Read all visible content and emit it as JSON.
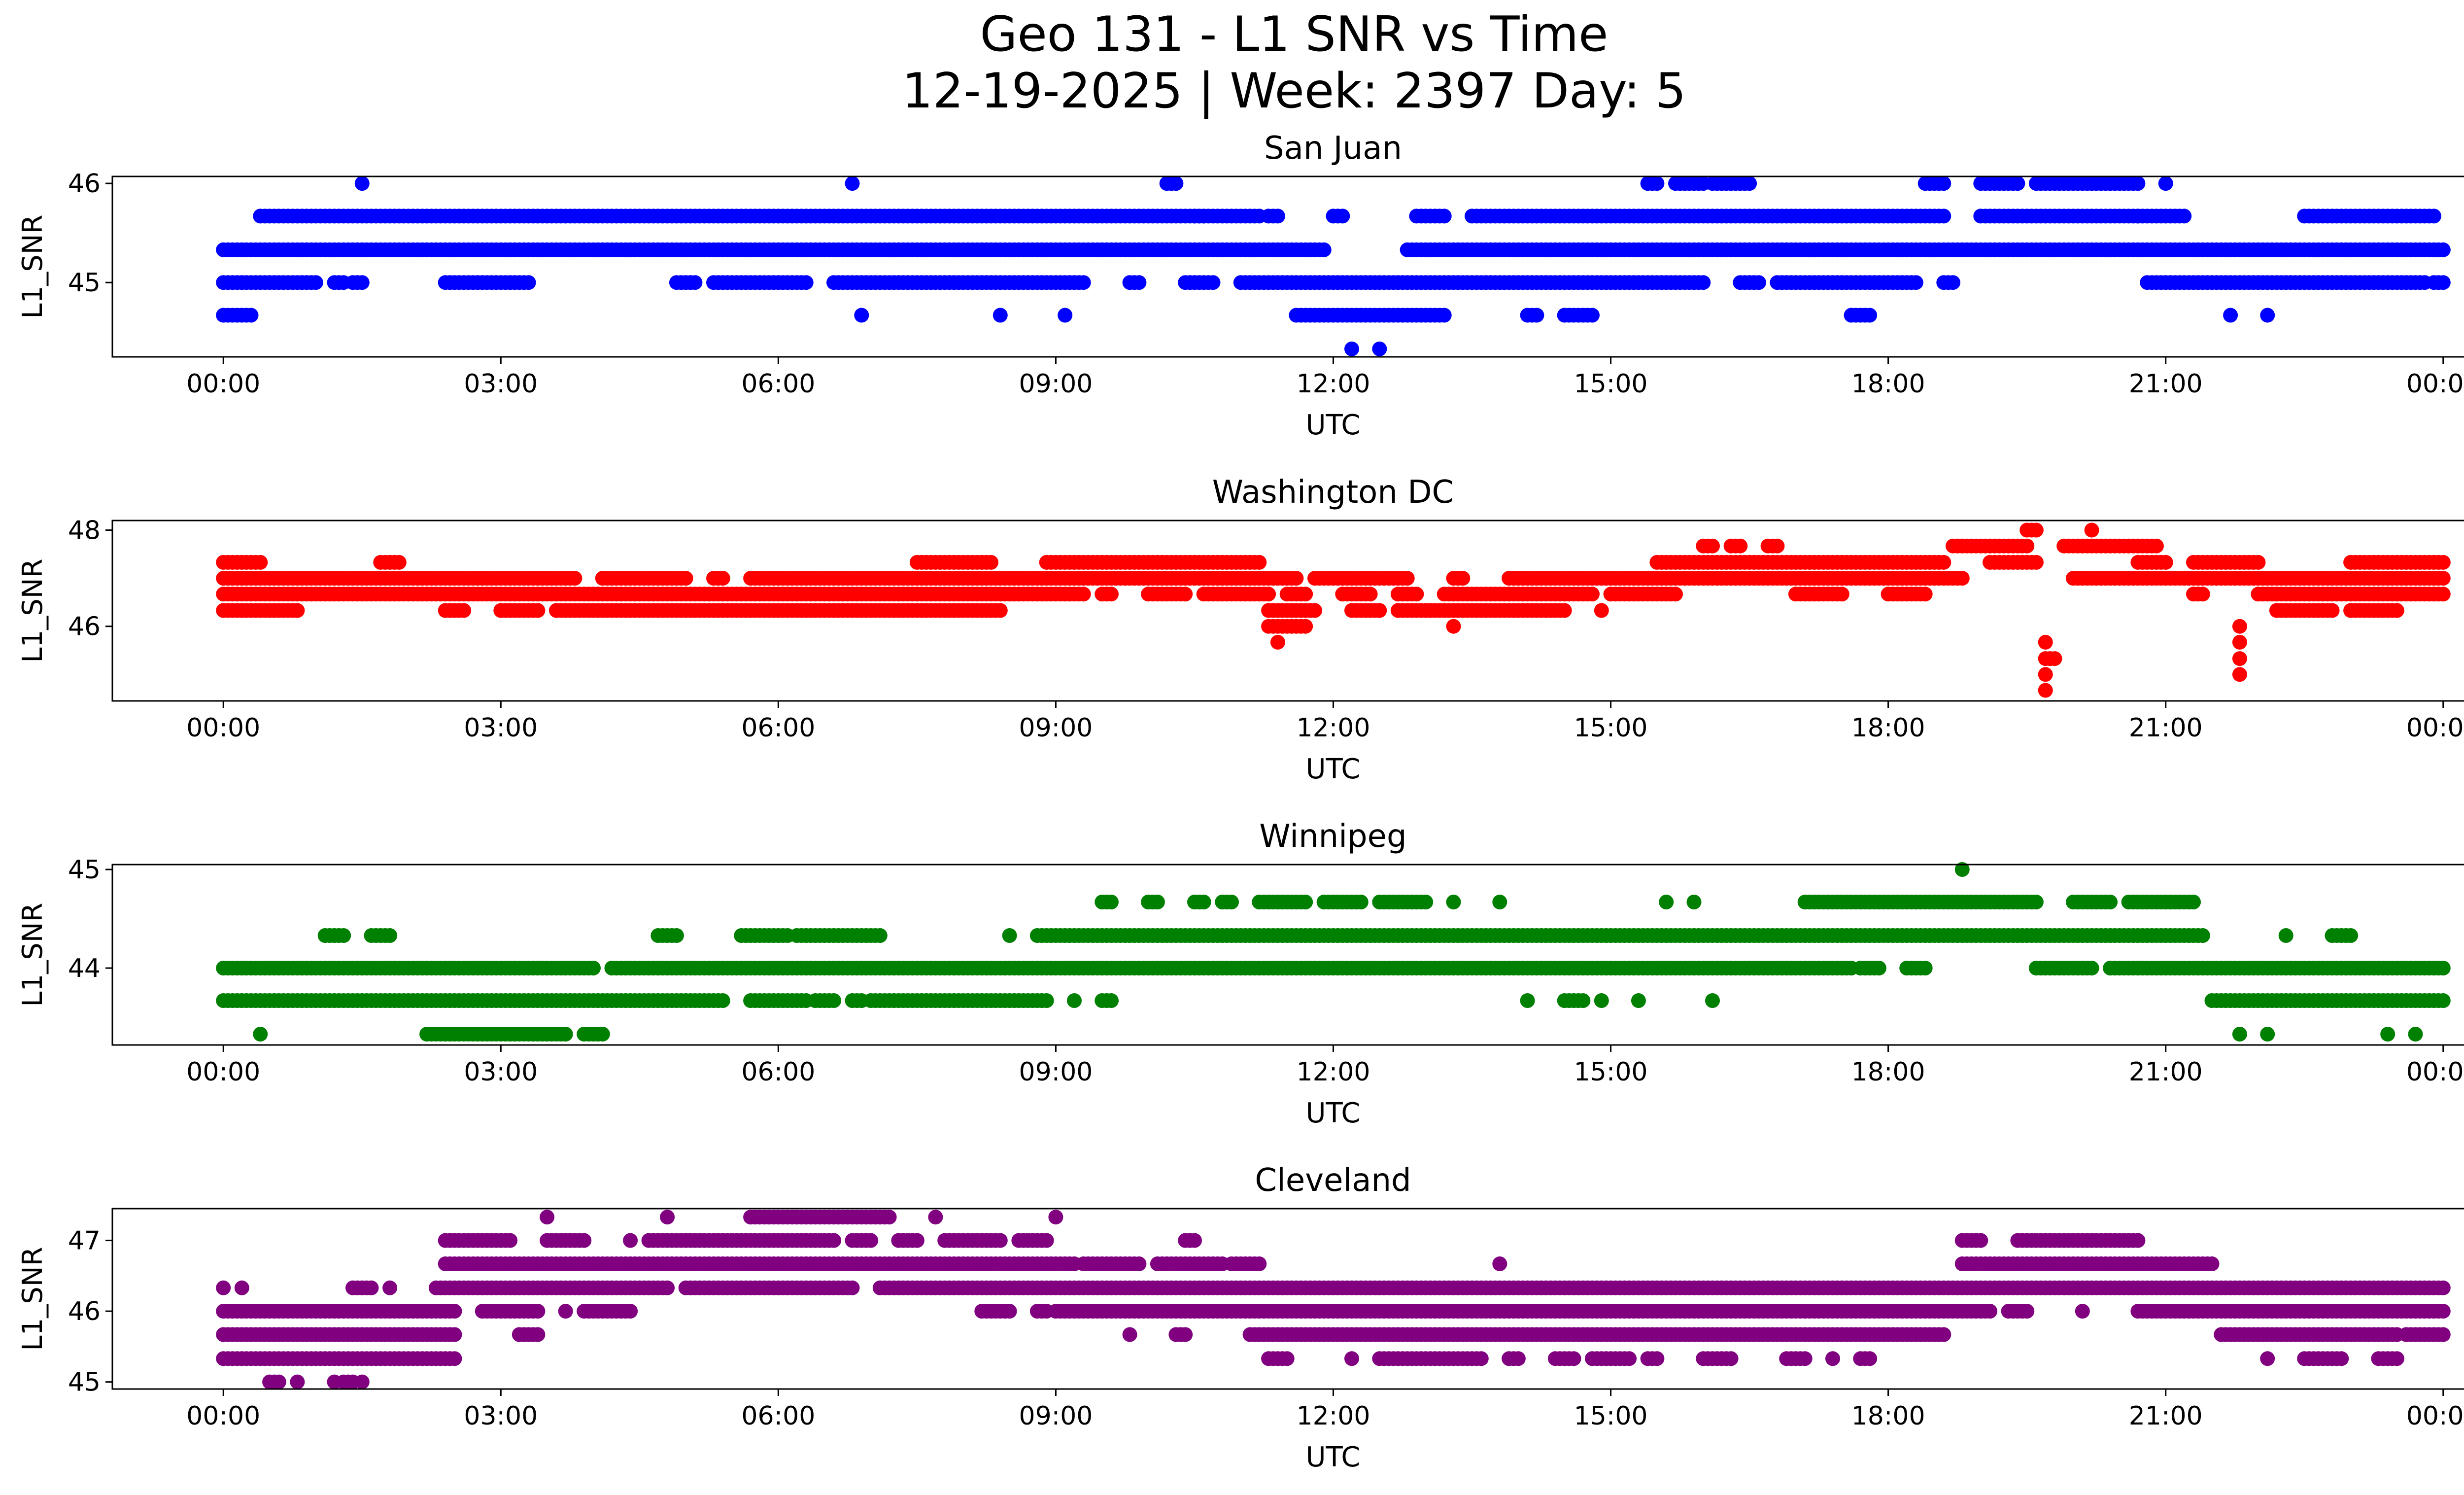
{
  "figure": {
    "title_line1": "Geo 131 - L1 SNR vs Time",
    "title_line2": "12-19-2025 | Week: 2397 Day: 5"
  },
  "chart_data": [
    {
      "type": "scatter",
      "title": "San Juan",
      "xlabel": "UTC",
      "ylabel": "L1_SNR",
      "color": "#0000ff",
      "xticks": [
        "00:00",
        "03:00",
        "06:00",
        "09:00",
        "12:00",
        "15:00",
        "18:00",
        "21:00",
        "00:00"
      ],
      "yticks": [
        45,
        46
      ],
      "xlim_hours": [
        -1.2,
        25.2
      ],
      "ylim": [
        44.25,
        46.07
      ],
      "bands": [
        {
          "y": 45.67,
          "segments": [
            [
              0.4,
              10.6
            ],
            [
              10.5,
              11.2
            ],
            [
              11.3,
              11.4
            ],
            [
              12.0,
              12.1
            ],
            [
              12.9,
              13.2
            ],
            [
              13.5,
              18.6
            ],
            [
              19.0,
              20.7
            ],
            [
              20.7,
              21.2
            ],
            [
              22.5,
              23.9
            ]
          ]
        },
        {
          "y": 45.33,
          "segments": [
            [
              0.0,
              11.9
            ],
            [
              12.8,
              24.0
            ]
          ]
        },
        {
          "y": 45.0,
          "segments": [
            [
              0.0,
              1.0
            ],
            [
              1.2,
              1.3
            ],
            [
              1.4,
              1.5
            ],
            [
              2.4,
              3.3
            ],
            [
              4.9,
              5.1
            ],
            [
              5.3,
              6.3
            ],
            [
              6.6,
              9.3
            ],
            [
              9.8,
              9.9
            ],
            [
              10.4,
              10.7
            ],
            [
              11.0,
              16.0
            ],
            [
              16.4,
              16.6
            ],
            [
              16.8,
              18.3
            ],
            [
              18.6,
              18.7
            ],
            [
              20.8,
              23.8
            ],
            [
              23.9,
              24.0
            ]
          ]
        },
        {
          "y": 44.67,
          "segments": [
            [
              0.0,
              0.3
            ],
            [
              6.9,
              6.9
            ],
            [
              8.4,
              8.4
            ],
            [
              9.1,
              9.1
            ],
            [
              11.6,
              13.2
            ],
            [
              14.1,
              14.2
            ],
            [
              14.5,
              14.8
            ],
            [
              17.6,
              17.8
            ],
            [
              21.7,
              21.7
            ],
            [
              22.1,
              22.1
            ]
          ]
        },
        {
          "y": 44.33,
          "segments": [
            [
              12.2,
              12.2
            ],
            [
              12.5,
              12.5
            ]
          ]
        },
        {
          "y": 46.0,
          "segments": [
            [
              1.5,
              1.5
            ],
            [
              6.8,
              6.8
            ],
            [
              10.2,
              10.3
            ],
            [
              15.4,
              15.5
            ],
            [
              15.7,
              16.0
            ],
            [
              16.1,
              16.5
            ],
            [
              18.4,
              18.6
            ],
            [
              19.0,
              19.4
            ],
            [
              19.6,
              20.7
            ],
            [
              21.0,
              21.0
            ]
          ]
        }
      ]
    },
    {
      "type": "scatter",
      "title": "Washington DC",
      "xlabel": "UTC",
      "ylabel": "L1_SNR",
      "color": "#ff0000",
      "xticks": [
        "00:00",
        "03:00",
        "06:00",
        "09:00",
        "12:00",
        "15:00",
        "18:00",
        "21:00",
        "00:00"
      ],
      "yticks": [
        46,
        48
      ],
      "xlim_hours": [
        -1.2,
        25.2
      ],
      "ylim": [
        44.45,
        48.2
      ],
      "bands": [
        {
          "y": 47.33,
          "segments": [
            [
              0.0,
              0.4
            ],
            [
              1.7,
              1.9
            ],
            [
              7.5,
              8.3
            ],
            [
              8.9,
              11.2
            ],
            [
              15.5,
              18.6
            ],
            [
              19.1,
              19.6
            ],
            [
              20.7,
              21.0
            ],
            [
              21.3,
              22.0
            ],
            [
              23.0,
              24.0
            ]
          ]
        },
        {
          "y": 47.0,
          "segments": [
            [
              0.0,
              3.8
            ],
            [
              4.1,
              5.0
            ],
            [
              5.3,
              5.4
            ],
            [
              5.7,
              11.6
            ],
            [
              11.8,
              12.8
            ],
            [
              13.3,
              13.4
            ],
            [
              13.9,
              18.8
            ],
            [
              20.0,
              24.0
            ]
          ]
        },
        {
          "y": 46.67,
          "segments": [
            [
              0.0,
              9.3
            ],
            [
              9.5,
              9.6
            ],
            [
              10.0,
              10.4
            ],
            [
              10.6,
              11.3
            ],
            [
              11.5,
              11.7
            ],
            [
              12.1,
              12.4
            ],
            [
              12.7,
              12.9
            ],
            [
              13.2,
              14.8
            ],
            [
              15.0,
              15.7
            ],
            [
              17.0,
              17.5
            ],
            [
              18.0,
              18.4
            ],
            [
              21.3,
              21.4
            ],
            [
              22.0,
              24.0
            ]
          ]
        },
        {
          "y": 46.33,
          "segments": [
            [
              0.0,
              0.8
            ],
            [
              2.4,
              2.6
            ],
            [
              3.0,
              3.4
            ],
            [
              3.6,
              8.4
            ],
            [
              11.3,
              11.8
            ],
            [
              12.2,
              12.5
            ],
            [
              12.7,
              14.5
            ],
            [
              14.9,
              14.9
            ],
            [
              22.2,
              22.8
            ],
            [
              23.0,
              23.5
            ]
          ]
        },
        {
          "y": 47.67,
          "segments": [
            [
              16.0,
              16.1
            ],
            [
              16.3,
              16.4
            ],
            [
              16.7,
              16.8
            ],
            [
              18.7,
              19.5
            ],
            [
              19.9,
              20.9
            ]
          ]
        },
        {
          "y": 48.0,
          "segments": [
            [
              19.5,
              19.6
            ],
            [
              20.2,
              20.2
            ]
          ]
        },
        {
          "y": 46.0,
          "segments": [
            [
              11.3,
              11.7
            ],
            [
              13.3,
              13.3
            ],
            [
              21.8,
              21.8
            ]
          ]
        },
        {
          "y": 45.67,
          "segments": [
            [
              11.4,
              11.4
            ],
            [
              19.7,
              19.7
            ],
            [
              21.8,
              21.8
            ]
          ]
        },
        {
          "y": 45.33,
          "segments": [
            [
              19.7,
              19.8
            ],
            [
              21.8,
              21.8
            ]
          ]
        },
        {
          "y": 45.0,
          "segments": [
            [
              19.7,
              19.7
            ],
            [
              21.8,
              21.8
            ]
          ]
        },
        {
          "y": 44.67,
          "segments": [
            [
              19.7,
              19.7
            ]
          ]
        }
      ]
    },
    {
      "type": "scatter",
      "title": "Winnipeg",
      "xlabel": "UTC",
      "ylabel": "L1_SNR",
      "color": "#008000",
      "xticks": [
        "00:00",
        "03:00",
        "06:00",
        "09:00",
        "12:00",
        "15:00",
        "18:00",
        "21:00",
        "00:00"
      ],
      "yticks": [
        44,
        45
      ],
      "xlim_hours": [
        -1.2,
        25.2
      ],
      "ylim": [
        43.22,
        45.05
      ],
      "bands": [
        {
          "y": 44.67,
          "segments": [
            [
              9.5,
              9.6
            ],
            [
              10.0,
              10.1
            ],
            [
              10.5,
              10.6
            ],
            [
              10.8,
              10.9
            ],
            [
              11.2,
              11.7
            ],
            [
              11.9,
              12.3
            ],
            [
              12.5,
              13.0
            ],
            [
              13.3,
              13.3
            ],
            [
              13.8,
              13.8
            ],
            [
              15.6,
              15.6
            ],
            [
              15.9,
              15.9
            ],
            [
              17.1,
              19.6
            ],
            [
              20.0,
              20.4
            ],
            [
              20.6,
              21.3
            ]
          ]
        },
        {
          "y": 44.33,
          "segments": [
            [
              1.1,
              1.3
            ],
            [
              1.6,
              1.8
            ],
            [
              4.7,
              4.9
            ],
            [
              5.6,
              6.1
            ],
            [
              6.2,
              7.1
            ],
            [
              8.5,
              8.5
            ],
            [
              8.8,
              21.4
            ],
            [
              22.3,
              22.3
            ],
            [
              22.8,
              23.0
            ]
          ]
        },
        {
          "y": 44.0,
          "segments": [
            [
              0.0,
              4.0
            ],
            [
              4.2,
              17.6
            ],
            [
              17.7,
              17.9
            ],
            [
              18.2,
              18.4
            ],
            [
              19.6,
              20.2
            ],
            [
              20.4,
              24.0
            ]
          ]
        },
        {
          "y": 43.67,
          "segments": [
            [
              0.0,
              5.4
            ],
            [
              5.7,
              6.3
            ],
            [
              6.4,
              6.6
            ],
            [
              6.8,
              6.9
            ],
            [
              7.0,
              8.9
            ],
            [
              9.2,
              9.2
            ],
            [
              9.5,
              9.6
            ],
            [
              14.1,
              14.1
            ],
            [
              14.5,
              14.7
            ],
            [
              14.9,
              14.9
            ],
            [
              15.3,
              15.3
            ],
            [
              16.1,
              16.1
            ],
            [
              21.5,
              24.0
            ]
          ]
        },
        {
          "y": 43.33,
          "segments": [
            [
              0.4,
              0.4
            ],
            [
              2.2,
              3.7
            ],
            [
              3.9,
              4.1
            ],
            [
              21.8,
              21.8
            ],
            [
              22.1,
              22.1
            ],
            [
              23.4,
              23.4
            ],
            [
              23.7,
              23.7
            ]
          ]
        },
        {
          "y": 45.0,
          "segments": [
            [
              18.8,
              18.8
            ]
          ]
        }
      ]
    },
    {
      "type": "scatter",
      "title": "Cleveland",
      "xlabel": "UTC",
      "ylabel": "L1_SNR",
      "color": "#800080",
      "xticks": [
        "00:00",
        "03:00",
        "06:00",
        "09:00",
        "12:00",
        "15:00",
        "18:00",
        "21:00",
        "00:00"
      ],
      "yticks": [
        45,
        46,
        47
      ],
      "xlim_hours": [
        -1.2,
        25.2
      ],
      "ylim": [
        44.9,
        47.45
      ],
      "bands": [
        {
          "y": 47.33,
          "segments": [
            [
              3.5,
              3.5
            ],
            [
              4.8,
              4.8
            ],
            [
              5.7,
              7.2
            ],
            [
              7.7,
              7.7
            ],
            [
              9.0,
              9.0
            ]
          ]
        },
        {
          "y": 47.0,
          "segments": [
            [
              2.4,
              3.1
            ],
            [
              3.5,
              3.9
            ],
            [
              4.4,
              4.4
            ],
            [
              4.6,
              6.6
            ],
            [
              6.8,
              7.0
            ],
            [
              7.3,
              7.5
            ],
            [
              7.8,
              8.4
            ],
            [
              8.6,
              8.9
            ],
            [
              10.4,
              10.5
            ],
            [
              18.8,
              19.0
            ],
            [
              19.4,
              20.7
            ]
          ]
        },
        {
          "y": 46.67,
          "segments": [
            [
              2.4,
              9.2
            ],
            [
              9.3,
              9.9
            ],
            [
              10.1,
              10.8
            ],
            [
              10.9,
              11.2
            ],
            [
              13.8,
              13.8
            ],
            [
              18.8,
              21.5
            ]
          ]
        },
        {
          "y": 46.33,
          "segments": [
            [
              0.0,
              0.0
            ],
            [
              0.2,
              0.2
            ],
            [
              1.4,
              1.6
            ],
            [
              1.8,
              1.8
            ],
            [
              2.3,
              4.8
            ],
            [
              5.0,
              6.8
            ],
            [
              7.1,
              24.0
            ]
          ]
        },
        {
          "y": 46.0,
          "segments": [
            [
              0.0,
              2.5
            ],
            [
              2.8,
              3.4
            ],
            [
              3.7,
              3.7
            ],
            [
              3.9,
              4.4
            ],
            [
              8.2,
              8.5
            ],
            [
              8.8,
              8.9
            ],
            [
              9.0,
              19.1
            ],
            [
              19.3,
              19.5
            ],
            [
              20.1,
              20.1
            ],
            [
              20.7,
              24.0
            ]
          ]
        },
        {
          "y": 45.67,
          "segments": [
            [
              0.0,
              2.5
            ],
            [
              3.2,
              3.4
            ],
            [
              9.8,
              9.8
            ],
            [
              10.3,
              10.4
            ],
            [
              11.1,
              18.6
            ],
            [
              21.6,
              23.5
            ],
            [
              23.6,
              24.0
            ]
          ]
        },
        {
          "y": 45.33,
          "segments": [
            [
              0.0,
              2.5
            ],
            [
              11.3,
              11.5
            ],
            [
              12.2,
              12.2
            ],
            [
              12.5,
              13.6
            ],
            [
              13.9,
              14.0
            ],
            [
              14.4,
              14.6
            ],
            [
              14.8,
              15.2
            ],
            [
              15.4,
              15.5
            ],
            [
              16.0,
              16.3
            ],
            [
              16.9,
              17.1
            ],
            [
              17.4,
              17.4
            ],
            [
              17.7,
              17.8
            ],
            [
              22.1,
              22.1
            ],
            [
              22.5,
              22.9
            ],
            [
              23.3,
              23.5
            ]
          ]
        },
        {
          "y": 45.0,
          "segments": [
            [
              0.5,
              0.6
            ],
            [
              0.8,
              0.8
            ],
            [
              1.2,
              1.2
            ],
            [
              1.3,
              1.4
            ],
            [
              1.5,
              1.5
            ]
          ]
        }
      ]
    }
  ]
}
